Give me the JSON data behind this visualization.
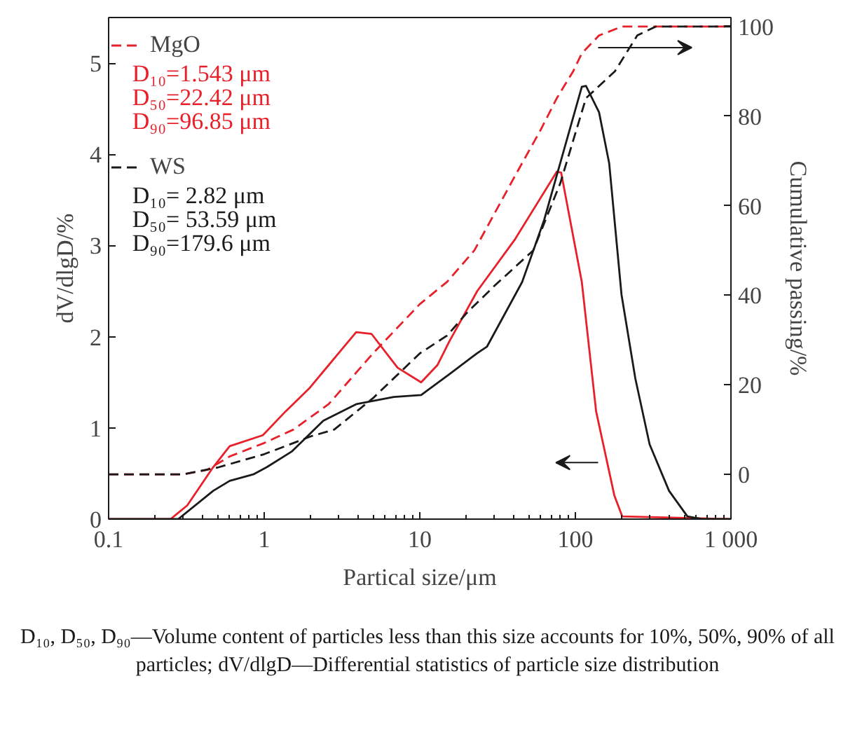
{
  "chart_data": {
    "type": "line",
    "xlabel": "Partical size/μm",
    "ylabel": "dV/dlgD/%",
    "y2label": "Cumulative passing/%",
    "log": "x",
    "xlim": [
      0.1,
      1000
    ],
    "xticks": [
      0.1,
      1,
      10,
      100,
      {
        "value": 1000,
        "label": "1 000"
      }
    ],
    "ylim": [
      0,
      5.5
    ],
    "yticks": [
      0,
      1,
      2,
      3,
      4,
      5
    ],
    "y2lim": [
      -10,
      102
    ],
    "y2ticks": [
      0,
      20,
      40,
      60,
      80,
      100
    ],
    "grid": false,
    "legend": "top left",
    "marker": "none",
    "series": [
      {
        "name": "MgO",
        "color": "#e8202a",
        "axis": "y2",
        "line_style": "dashed",
        "x": [
          0.1,
          0.3,
          0.43,
          0.6,
          1,
          1.543,
          2.6,
          5,
          10,
          15,
          22.42,
          40,
          60,
          76,
          96.85,
          110,
          142,
          200,
          1000
        ],
        "values": [
          0,
          0,
          1,
          4,
          7,
          10,
          15.7,
          27,
          38,
          43,
          50,
          66,
          77,
          84,
          90,
          94,
          98,
          100,
          100
        ]
      },
      {
        "color": "#e8202a",
        "line_style": "solid",
        "x": [
          0.1,
          0.25,
          0.32,
          0.47,
          0.6,
          0.98,
          1.37,
          1.94,
          2.6,
          3.9,
          4.9,
          7.2,
          10.2,
          13,
          15.5,
          23.4,
          41,
          76,
          81,
          110,
          136,
          178,
          200,
          1000
        ],
        "values": [
          0,
          0,
          0.15,
          0.57,
          0.8,
          0.92,
          1.18,
          1.43,
          1.69,
          2.05,
          2.03,
          1.66,
          1.5,
          1.69,
          1.95,
          2.5,
          3.07,
          3.81,
          3.8,
          2.6,
          1.18,
          0.26,
          0.03,
          0
        ]
      },
      {
        "name": "WS",
        "color": "#1a1a1a",
        "axis": "y2",
        "line_style": "dashed",
        "x": [
          0.1,
          0.3,
          0.5,
          1,
          2,
          2.82,
          5,
          10,
          15,
          20,
          30,
          53.59,
          80,
          117,
          179.6,
          250,
          330,
          1000
        ],
        "values": [
          0,
          0,
          1.5,
          4.5,
          8.5,
          10,
          17,
          27,
          31,
          36,
          42,
          50,
          65,
          84,
          90,
          98,
          100,
          100
        ]
      },
      {
        "color": "#1a1a1a",
        "line_style": "solid",
        "x": [
          0.1,
          0.28,
          0.47,
          0.6,
          0.85,
          1.04,
          1.5,
          2.4,
          3.9,
          6.8,
          10.2,
          15.5,
          23.4,
          27,
          45.5,
          63,
          110,
          117,
          142,
          165,
          198,
          243,
          300,
          400,
          525,
          650,
          1000
        ],
        "values": [
          0,
          0,
          0.31,
          0.42,
          0.49,
          0.57,
          0.74,
          1.08,
          1.26,
          1.34,
          1.36,
          1.59,
          1.82,
          1.89,
          2.6,
          3.28,
          4.74,
          4.75,
          4.46,
          3.9,
          2.46,
          1.54,
          0.82,
          0.31,
          0.03,
          0,
          0
        ]
      }
    ],
    "annotations": [
      "D₁₀=1.543 μm",
      "D₅₀=22.42 μm",
      "D₉₀=96.85 μm",
      "D₁₀= 2.82 μm",
      "D₅₀= 53.59 μm",
      "D₉₀=179.6 μm",
      "D₁₀, D₅₀, D₉₀—Volume content of particles less than this size accounts for 10%, 50%, 90% of all particles; dV/dlgD—Differential statistics of particle size distribution"
    ]
  }
}
